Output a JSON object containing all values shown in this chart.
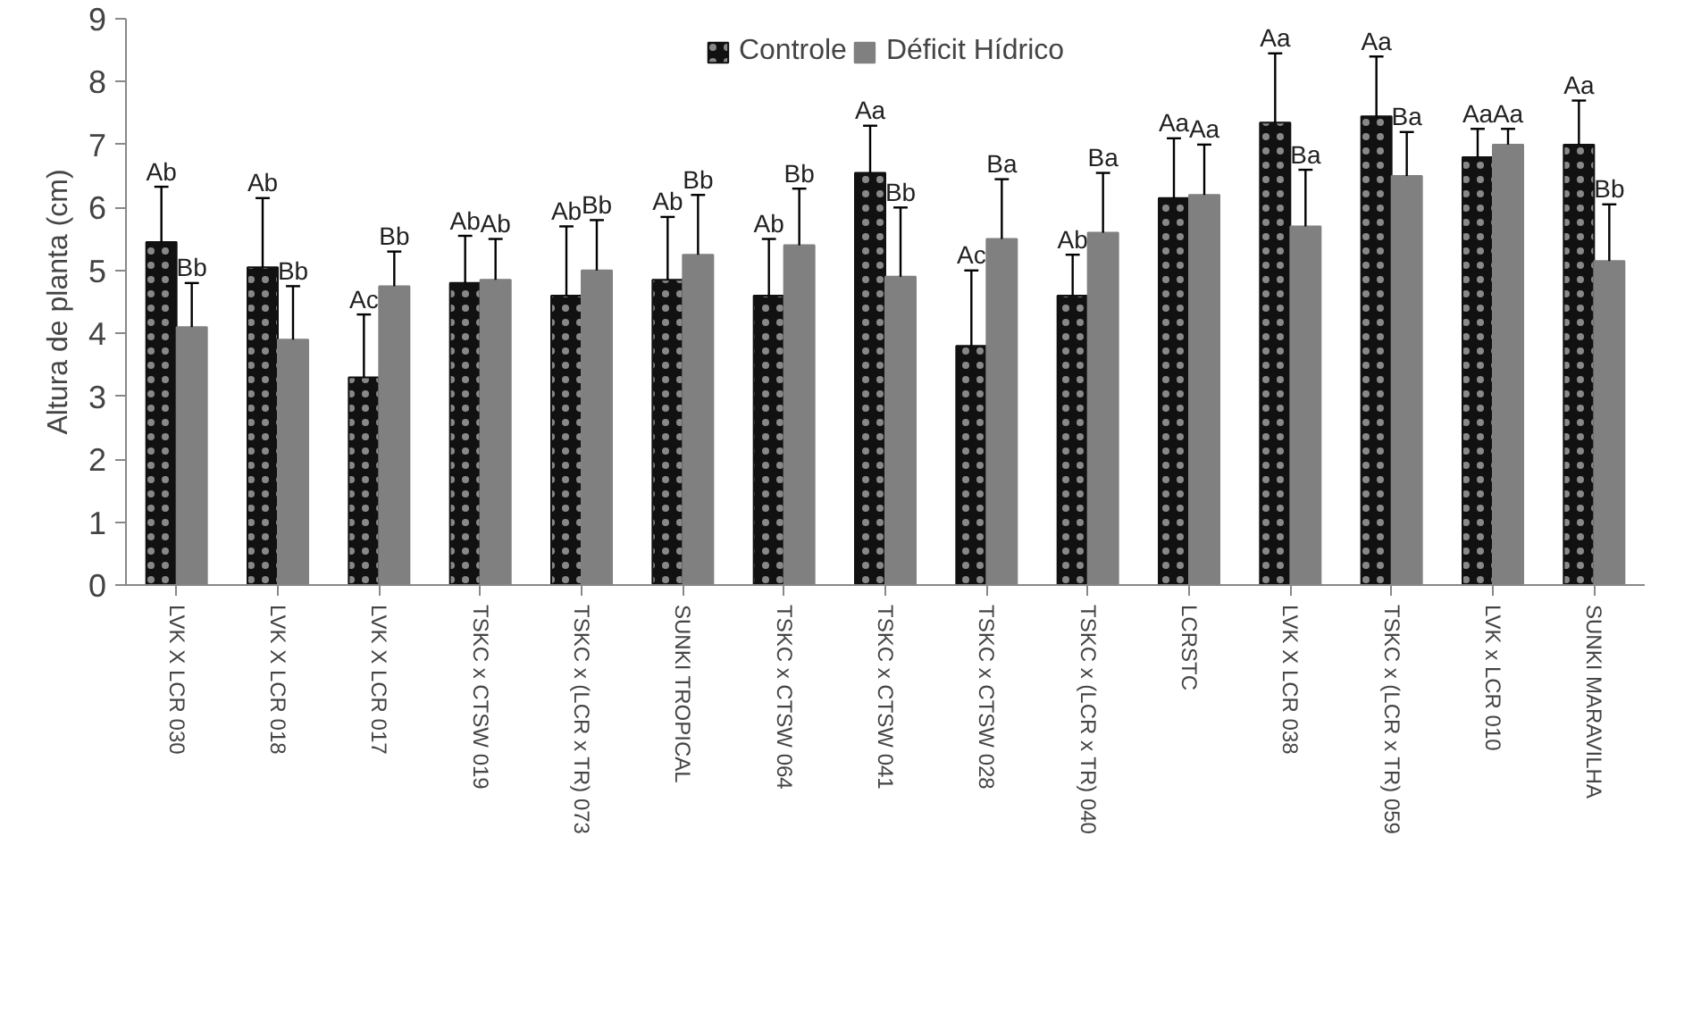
{
  "chart_data": {
    "type": "bar",
    "ylabel": "Altura de planta (cm)",
    "categories": [
      "LVK X LCR 030",
      "LVK X LCR 018",
      "LVK X LCR 017",
      "TSKC x CTSW 019",
      "TSKC x (LCR x TR) 073",
      "SUNKI TROPICAL",
      "TSKC x CTSW 064",
      "TSKC x CTSW 041",
      "TSKC x CTSW 028",
      "TSKC x (LCR x TR) 040",
      "LCRSTC",
      "LVK X LCR 038",
      "TSKC x (LCR x TR) 059",
      "LVK x LCR 010",
      "SUNKI MARAVILHA"
    ],
    "series": [
      {
        "name": "Controle",
        "color": "#111111",
        "values": [
          5.45,
          5.05,
          3.3,
          4.8,
          4.6,
          4.85,
          4.6,
          6.55,
          3.8,
          4.6,
          6.15,
          7.35,
          7.45,
          6.8,
          7.0
        ],
        "errors": [
          [
            5.45,
            6.33
          ],
          [
            5.05,
            6.15
          ],
          [
            3.3,
            4.3
          ],
          [
            4.8,
            5.55
          ],
          [
            4.6,
            5.7
          ],
          [
            4.85,
            5.85
          ],
          [
            4.6,
            5.5
          ],
          [
            6.55,
            7.3
          ],
          [
            3.8,
            5.0
          ],
          [
            4.6,
            5.25
          ],
          [
            6.15,
            7.1
          ],
          [
            7.35,
            8.45
          ],
          [
            7.45,
            8.4
          ],
          [
            6.8,
            7.25
          ],
          [
            7.0,
            7.7
          ]
        ],
        "value_labels": [
          "Ab",
          "Ab",
          "Ac",
          "Ab",
          "Ab",
          "Ab",
          "Ab",
          "Aa",
          "Ac",
          "Ab",
          "Aa",
          "Aa",
          "Aa",
          "Aa",
          "Aa"
        ]
      },
      {
        "name": "Déficit Hídrico",
        "color": "#808080",
        "values": [
          4.1,
          3.9,
          4.75,
          4.85,
          5.0,
          5.25,
          5.4,
          4.9,
          5.5,
          5.6,
          6.2,
          5.7,
          6.5,
          7.0,
          5.15
        ],
        "errors": [
          [
            4.1,
            4.8
          ],
          [
            3.9,
            4.75
          ],
          [
            4.75,
            5.3
          ],
          [
            4.85,
            5.5
          ],
          [
            5.0,
            5.8
          ],
          [
            5.25,
            6.2
          ],
          [
            5.4,
            6.3
          ],
          [
            4.9,
            6.0
          ],
          [
            5.5,
            6.45
          ],
          [
            5.6,
            6.55
          ],
          [
            6.2,
            7.0
          ],
          [
            5.7,
            6.6
          ],
          [
            6.5,
            7.2
          ],
          [
            7.0,
            7.25
          ],
          [
            5.15,
            6.05
          ]
        ],
        "value_labels": [
          "Bb",
          "Bb",
          "Bb",
          "Ab",
          "Bb",
          "Bb",
          "Bb",
          "Bb",
          "Ba",
          "Ba",
          "Aa",
          "Ba",
          "Ba",
          "Aa",
          "Bb"
        ]
      }
    ],
    "ylim": [
      0,
      9
    ],
    "yticks": [
      0,
      1,
      2,
      3,
      4,
      5,
      6,
      7,
      8,
      9
    ],
    "grid": false,
    "legend": "top"
  }
}
